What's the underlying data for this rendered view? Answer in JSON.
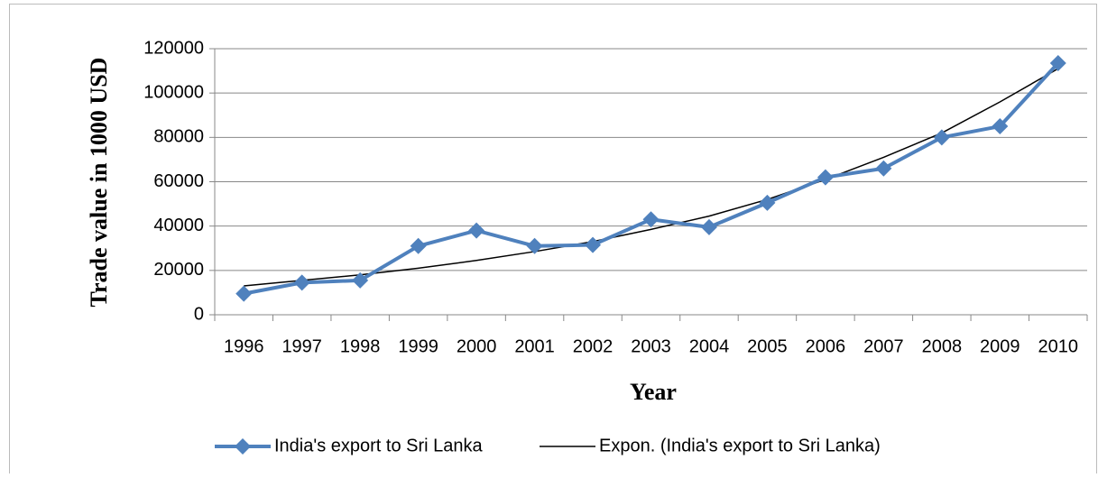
{
  "chart_data": {
    "type": "line",
    "y_label": "Trade value in 1000 USD",
    "x_label": "Year",
    "categories": [
      "1996",
      "1997",
      "1998",
      "1999",
      "2000",
      "2001",
      "2002",
      "2003",
      "2004",
      "2005",
      "2006",
      "2007",
      "2008",
      "2009",
      "2010"
    ],
    "series": [
      {
        "name": "India's export to Sri Lanka",
        "color": "#4f81bd",
        "marker": "diamond",
        "values": [
          9500,
          14500,
          15500,
          31000,
          38000,
          31000,
          31500,
          43000,
          39500,
          50500,
          62000,
          66000,
          80000,
          85000,
          113500
        ]
      },
      {
        "name": "Expon. (India's export to Sri Lanka)",
        "color": "#000000",
        "marker": "none",
        "values": [
          13000,
          15500,
          18000,
          21000,
          24500,
          28500,
          33000,
          38500,
          44500,
          52000,
          61000,
          71000,
          82000,
          96000,
          111000
        ]
      }
    ],
    "ylim": [
      0,
      120000
    ],
    "yticks": [
      0,
      20000,
      40000,
      60000,
      80000,
      100000,
      120000
    ],
    "grid": true,
    "legend": "bottom"
  }
}
